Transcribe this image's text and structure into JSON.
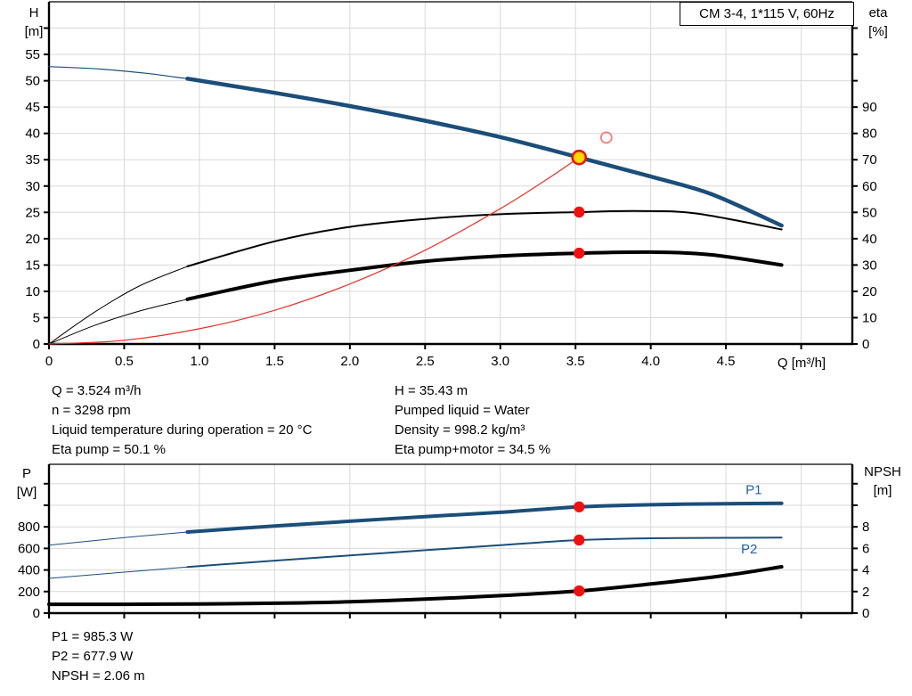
{
  "title_box": "CM 3-4, 1*115 V, 60Hz",
  "colors": {
    "blue": "#1b4e79",
    "black": "#000000",
    "red": "#e5332a",
    "red_bright": "#ef1010",
    "red_light": "#ff7a7a",
    "yellow": "#ffd900",
    "label_blue": "#2361a8",
    "grid": "#d9d9d9",
    "axis": "#000000"
  },
  "chart_data": [
    {
      "type": "line",
      "title": "CM 3-4, 1*115 V, 60Hz",
      "x_axis": {
        "label": "Q [m³/h]",
        "min": 0,
        "max": 5.34,
        "tick_step": 0.5,
        "last_labeled_tick": 4.5
      },
      "y_left": {
        "label": [
          "H",
          "[m]"
        ],
        "min": 0,
        "max": 65,
        "tick_step": 5,
        "last_labeled_tick": 55
      },
      "y_right": {
        "label": [
          "eta",
          "[%]"
        ],
        "min": 0,
        "max": 130,
        "tick_step": 10,
        "last_labeled_tick": 90
      },
      "grid": true,
      "series": [
        {
          "name": "head-curve-ext",
          "axis": "left",
          "color": "blue",
          "width": 1.2,
          "points": [
            [
              0,
              52.7
            ],
            [
              0.35,
              52.2
            ],
            [
              0.65,
              51.4
            ],
            [
              0.92,
              50.4
            ]
          ]
        },
        {
          "name": "head-curve",
          "axis": "left",
          "color": "blue",
          "width": 4.5,
          "points": [
            [
              0.92,
              50.4
            ],
            [
              1.5,
              47.7
            ],
            [
              2,
              45.2
            ],
            [
              2.5,
              42.4
            ],
            [
              3,
              39.3
            ],
            [
              3.524,
              35.43
            ],
            [
              4,
              31.8
            ],
            [
              4.4,
              28.5
            ],
            [
              4.87,
              22.5
            ]
          ]
        },
        {
          "name": "eta-pump-curve-ext",
          "axis": "right",
          "color": "black",
          "width": 1,
          "points": [
            [
              0,
              0
            ],
            [
              0.3,
              12
            ],
            [
              0.6,
              22
            ],
            [
              0.92,
              29.5
            ]
          ]
        },
        {
          "name": "eta-pump-curve",
          "axis": "right",
          "color": "black",
          "width": 2,
          "points": [
            [
              0.92,
              29.5
            ],
            [
              1.5,
              39
            ],
            [
              2,
              44.5
            ],
            [
              2.5,
              47.5
            ],
            [
              3,
              49.3
            ],
            [
              3.524,
              50.1
            ],
            [
              3.9,
              50.5
            ],
            [
              4.3,
              49.6
            ],
            [
              4.87,
              43.5
            ]
          ]
        },
        {
          "name": "eta-pump-motor-curve-ext",
          "axis": "right",
          "color": "black",
          "width": 1,
          "points": [
            [
              0,
              0
            ],
            [
              0.3,
              7
            ],
            [
              0.6,
              12.5
            ],
            [
              0.92,
              17
            ]
          ]
        },
        {
          "name": "eta-pump-motor-curve",
          "axis": "right",
          "color": "black",
          "width": 4,
          "points": [
            [
              0.92,
              17
            ],
            [
              1.5,
              24
            ],
            [
              2,
              28
            ],
            [
              2.5,
              31.4
            ],
            [
              3,
              33.4
            ],
            [
              3.524,
              34.5
            ],
            [
              4,
              34.9
            ],
            [
              4.4,
              33.9
            ],
            [
              4.87,
              30
            ]
          ]
        },
        {
          "name": "system-curve",
          "axis": "left",
          "color": "red",
          "width": 1.2,
          "points": [
            [
              0,
              0
            ],
            [
              0.5,
              0.7
            ],
            [
              1,
              2.9
            ],
            [
              1.5,
              6.4
            ],
            [
              2,
              11.4
            ],
            [
              2.5,
              17.8
            ],
            [
              3,
              25.7
            ],
            [
              3.3,
              31.1
            ],
            [
              3.524,
              35.43
            ]
          ]
        }
      ],
      "markers": [
        {
          "name": "duty-point",
          "shape": "ring-dot",
          "axis": "left",
          "x": 3.524,
          "y": 35.43,
          "fill": "yellow",
          "stroke": "red_bright"
        },
        {
          "name": "eta-pump-point",
          "shape": "dot",
          "axis": "right",
          "x": 3.524,
          "y": 50.1,
          "fill": "red_bright"
        },
        {
          "name": "eta-pump-motor-point",
          "shape": "dot",
          "axis": "right",
          "x": 3.524,
          "y": 34.5,
          "fill": "red_bright"
        },
        {
          "name": "requested-duty-point",
          "shape": "open-circle",
          "axis": "left",
          "x": 3.705,
          "y": 39.2,
          "stroke": "red_light"
        }
      ],
      "curve_labels": []
    },
    {
      "type": "line",
      "title": "",
      "x_axis": {
        "label": "",
        "min": 0,
        "max": 5.34,
        "tick_step": 0.5,
        "last_labeled_tick": -1
      },
      "y_left": {
        "label": [
          "P",
          "[W]"
        ],
        "min": 0,
        "max": 1380,
        "tick_step": 200,
        "last_labeled_tick": 800
      },
      "y_right": {
        "label": [
          "NPSH",
          "[m]"
        ],
        "min": 0,
        "max": 13.8,
        "tick_step": 2,
        "last_labeled_tick": 8
      },
      "grid": true,
      "series": [
        {
          "name": "p1-curve-ext",
          "axis": "left",
          "color": "blue",
          "width": 1,
          "points": [
            [
              0,
              630
            ],
            [
              0.5,
              700
            ],
            [
              0.92,
              752
            ]
          ]
        },
        {
          "name": "p1-curve",
          "axis": "left",
          "color": "blue",
          "width": 4,
          "points": [
            [
              0.92,
              752
            ],
            [
              1.5,
              808
            ],
            [
              2,
              852
            ],
            [
              2.5,
              895
            ],
            [
              3,
              935
            ],
            [
              3.524,
              985
            ],
            [
              4,
              1005
            ],
            [
              4.5,
              1015
            ],
            [
              4.87,
              1018
            ]
          ]
        },
        {
          "name": "p2-curve-ext",
          "axis": "left",
          "color": "blue",
          "width": 1,
          "points": [
            [
              0,
              322
            ],
            [
              0.5,
              380
            ],
            [
              0.92,
              428
            ]
          ]
        },
        {
          "name": "p2-curve",
          "axis": "left",
          "color": "blue",
          "width": 2,
          "points": [
            [
              0.92,
              428
            ],
            [
              1.5,
              487
            ],
            [
              2,
              535
            ],
            [
              2.5,
              583
            ],
            [
              3,
              630
            ],
            [
              3.524,
              678
            ],
            [
              4,
              694
            ],
            [
              4.5,
              698
            ],
            [
              4.87,
              700
            ]
          ]
        },
        {
          "name": "npsh-curve",
          "axis": "right",
          "color": "black",
          "width": 4,
          "points": [
            [
              0,
              0.82
            ],
            [
              0.5,
              0.82
            ],
            [
              1,
              0.85
            ],
            [
              1.5,
              0.92
            ],
            [
              2,
              1.05
            ],
            [
              2.5,
              1.3
            ],
            [
              3,
              1.62
            ],
            [
              3.524,
              2.06
            ],
            [
              4,
              2.7
            ],
            [
              4.5,
              3.5
            ],
            [
              4.87,
              4.3
            ]
          ]
        }
      ],
      "markers": [
        {
          "name": "p1-point",
          "shape": "dot",
          "axis": "left",
          "x": 3.524,
          "y": 985,
          "fill": "red_bright"
        },
        {
          "name": "p2-point",
          "shape": "dot",
          "axis": "left",
          "x": 3.524,
          "y": 678,
          "fill": "red_bright"
        },
        {
          "name": "npsh-point",
          "shape": "dot",
          "axis": "right",
          "x": 3.524,
          "y": 2.06,
          "fill": "red_bright"
        }
      ],
      "curve_labels": [
        {
          "text": "P1",
          "axis": "left",
          "x": 4.63,
          "y": 1105,
          "color": "label_blue"
        },
        {
          "text": "P2",
          "axis": "left",
          "x": 4.6,
          "y": 555,
          "color": "label_blue"
        }
      ]
    }
  ],
  "axis_titles": {
    "top_left_1": "H",
    "top_left_2": "[m]",
    "top_right_1": "eta",
    "top_right_2": "[%]",
    "x_label": "Q [m³/h]",
    "bottom_left_1": "P",
    "bottom_left_2": "[W]",
    "bottom_right_1": "NPSH",
    "bottom_right_2": "[m]"
  },
  "annotations": {
    "mid_left": [
      "Q = 3.524 m³/h",
      "n = 3298 rpm",
      "Liquid temperature during operation = 20 °C",
      "Eta pump = 50.1 %"
    ],
    "mid_right": [
      "H = 35.43 m",
      "Pumped liquid = Water",
      "Density = 998.2 kg/m³",
      "Eta pump+motor = 34.5 %"
    ],
    "bottom": [
      "P1 = 985.3 W",
      "P2 = 677.9 W",
      "NPSH = 2.06 m"
    ]
  }
}
